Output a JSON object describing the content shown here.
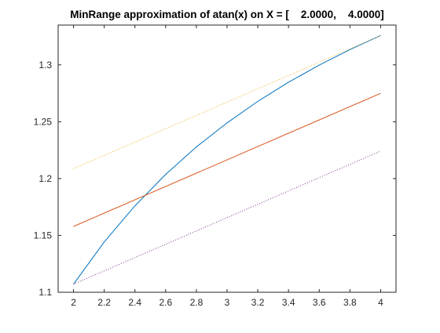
{
  "chart_data": {
    "type": "line",
    "title": "MinRange approximation of atan(x) on X = [    2.0000,    4.0000]",
    "xlabel": "",
    "ylabel": "",
    "xlim": [
      1.9,
      4.1
    ],
    "ylim": [
      1.1,
      1.335
    ],
    "grid": false,
    "x_ticks": [
      2,
      2.2,
      2.4,
      2.6,
      2.8,
      3,
      3.2,
      3.4,
      3.6,
      3.8,
      4
    ],
    "x_tick_labels": [
      "2",
      "2.2",
      "2.4",
      "2.6",
      "2.8",
      "3",
      "3.2",
      "3.4",
      "3.6",
      "3.8",
      "4"
    ],
    "y_ticks": [
      1.1,
      1.15,
      1.2,
      1.25,
      1.3
    ],
    "y_tick_labels": [
      "1.1",
      "1.15",
      "1.2",
      "1.25",
      "1.3"
    ],
    "series": [
      {
        "color": "#0072BD",
        "style": "solid",
        "x": [
          2.0,
          2.2,
          2.4,
          2.6,
          2.8,
          3.0,
          3.2,
          3.4,
          3.6,
          3.8,
          4.0
        ],
        "y": [
          1.1071,
          1.1442,
          1.176,
          1.2036,
          1.2278,
          1.249,
          1.2679,
          1.2847,
          1.2998,
          1.3134,
          1.3258
        ]
      },
      {
        "color": "#D95319",
        "style": "solid",
        "x": [
          2.0,
          4.0
        ],
        "y": [
          1.1579,
          1.275
        ]
      },
      {
        "color": "#EDB120",
        "style": "dotted",
        "x": [
          2.0,
          4.0
        ],
        "y": [
          1.2087,
          1.3258
        ]
      },
      {
        "color": "#7E2F8E",
        "style": "dotted",
        "x": [
          2.0,
          4.0
        ],
        "y": [
          1.1071,
          1.2242
        ]
      }
    ]
  }
}
